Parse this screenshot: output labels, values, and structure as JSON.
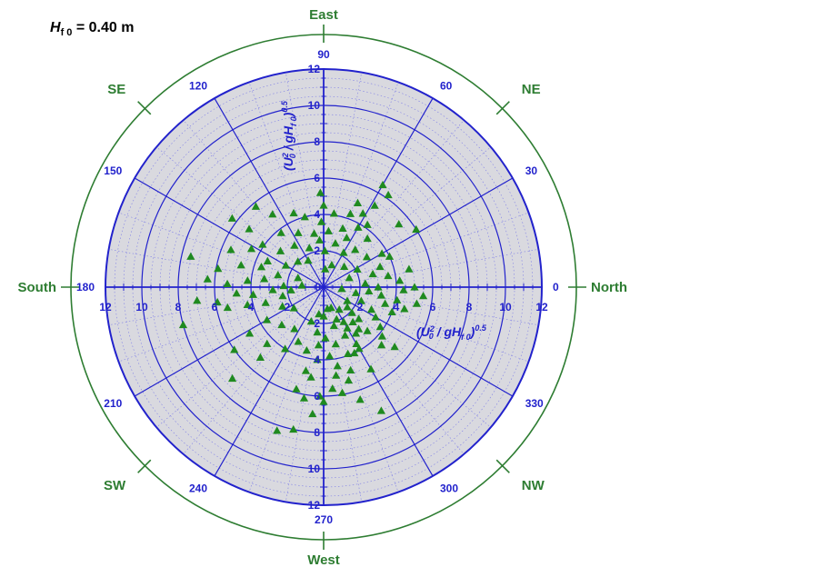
{
  "title": {
    "symbol": "H",
    "subscript": "f 0",
    "value_text": " = 0.40 m"
  },
  "colors": {
    "grid": "#2222cc",
    "fine_grid": "#7e7ee6",
    "plot_fill": "#d9d9df",
    "compass": "#2e7d32",
    "marker": "#1f8a1f"
  },
  "chart_data": {
    "type": "scatter",
    "coordinate_system": "polar",
    "zero_direction": "right",
    "angle_direction": "counterclockwise",
    "angle_ticks": [
      0,
      30,
      60,
      90,
      120,
      150,
      180,
      210,
      240,
      270,
      300,
      330
    ],
    "radial_ticks": [
      0,
      2,
      4,
      6,
      8,
      10,
      12
    ],
    "radial_max": 12,
    "radial_axis_label": {
      "prefix": "(U",
      "sup": "2",
      "sub": "0",
      "middle": " / gH",
      "sub2": "f 0",
      "suffix": ")",
      "power": "0.5"
    },
    "compass_labels": [
      {
        "angle": 0,
        "text": "North"
      },
      {
        "angle": 45,
        "text": "NE"
      },
      {
        "angle": 90,
        "text": "East"
      },
      {
        "angle": 135,
        "text": "SE"
      },
      {
        "angle": 180,
        "text": "South"
      },
      {
        "angle": 225,
        "text": "SW"
      },
      {
        "angle": 270,
        "text": "West"
      },
      {
        "angle": 315,
        "text": "NW"
      }
    ],
    "marker": "triangle",
    "grid": true,
    "points": [
      [
        1.5,
        305
      ],
      [
        1.2,
        290
      ],
      [
        2.2,
        300
      ],
      [
        1.7,
        320
      ],
      [
        2.5,
        310
      ],
      [
        3.1,
        305
      ],
      [
        3.6,
        300
      ],
      [
        4.2,
        320
      ],
      [
        3.8,
        325
      ],
      [
        4.5,
        315
      ],
      [
        5.1,
        320
      ],
      [
        2.6,
        318
      ],
      [
        3.3,
        330
      ],
      [
        4.0,
        340
      ],
      [
        4.6,
        345
      ],
      [
        5.2,
        350
      ],
      [
        1.5,
        330
      ],
      [
        2.2,
        340
      ],
      [
        2.9,
        335
      ],
      [
        3.5,
        345
      ],
      [
        1.8,
        350
      ],
      [
        2.5,
        355
      ],
      [
        3.2,
        352
      ],
      [
        4.1,
        350
      ],
      [
        4.4,
        358
      ],
      [
        5.0,
        0
      ],
      [
        5.5,
        355
      ],
      [
        3.0,
        0
      ],
      [
        2.3,
        5
      ],
      [
        1.0,
        355
      ],
      [
        4.2,
        5
      ],
      [
        3.6,
        10
      ],
      [
        2.8,
        15
      ],
      [
        1.5,
        20
      ],
      [
        3.3,
        20
      ],
      [
        4.0,
        25
      ],
      [
        3.7,
        30
      ],
      [
        4.8,
        12
      ],
      [
        2.1,
        28
      ],
      [
        2.9,
        35
      ],
      [
        5.4,
        40
      ],
      [
        6.0,
        32
      ],
      [
        1.6,
        45
      ],
      [
        2.7,
        50
      ],
      [
        3.6,
        48
      ],
      [
        4.2,
        55
      ],
      [
        3.8,
        60
      ],
      [
        4.6,
        62
      ],
      [
        5.3,
        58
      ],
      [
        6.2,
        55
      ],
      [
        2.2,
        60
      ],
      [
        3.0,
        65
      ],
      [
        1.3,
        70
      ],
      [
        2.5,
        75
      ],
      [
        3.4,
        72
      ],
      [
        4.3,
        70
      ],
      [
        5.0,
        68
      ],
      [
        6.5,
        60
      ],
      [
        1.0,
        85
      ],
      [
        2.0,
        88
      ],
      [
        3.1,
        85
      ],
      [
        4.1,
        82
      ],
      [
        2.6,
        95
      ],
      [
        3.6,
        92
      ],
      [
        4.5,
        90
      ],
      [
        5.2,
        92
      ],
      [
        3.0,
        100
      ],
      [
        4.0,
        105
      ],
      [
        2.3,
        110
      ],
      [
        3.3,
        115
      ],
      [
        4.4,
        112
      ],
      [
        1.7,
        120
      ],
      [
        2.8,
        125
      ],
      [
        3.8,
        128
      ],
      [
        4.9,
        125
      ],
      [
        5.8,
        130
      ],
      [
        2.0,
        135
      ],
      [
        3.1,
        140
      ],
      [
        4.1,
        145
      ],
      [
        5.2,
        142
      ],
      [
        6.3,
        143
      ],
      [
        2.4,
        150
      ],
      [
        3.4,
        155
      ],
      [
        4.5,
        152
      ],
      [
        5.5,
        158
      ],
      [
        1.5,
        160
      ],
      [
        2.6,
        165
      ],
      [
        3.6,
        162
      ],
      [
        4.7,
        165
      ],
      [
        5.9,
        170
      ],
      [
        7.5,
        167
      ],
      [
        1.2,
        175
      ],
      [
        2.2,
        178
      ],
      [
        3.3,
        172
      ],
      [
        4.2,
        175
      ],
      [
        5.3,
        178
      ],
      [
        6.4,
        176
      ],
      [
        1.8,
        185
      ],
      [
        2.8,
        183
      ],
      [
        3.9,
        186
      ],
      [
        4.8,
        184
      ],
      [
        5.9,
        188
      ],
      [
        7.0,
        186
      ],
      [
        8.0,
        195
      ],
      [
        2.3,
        192
      ],
      [
        3.3,
        195
      ],
      [
        4.3,
        193
      ],
      [
        5.4,
        192
      ],
      [
        2.5,
        205
      ],
      [
        3.6,
        210
      ],
      [
        4.8,
        212
      ],
      [
        6.0,
        215
      ],
      [
        7.1,
        225
      ],
      [
        2.0,
        215
      ],
      [
        3.1,
        222
      ],
      [
        4.4,
        225
      ],
      [
        5.2,
        228
      ],
      [
        2.8,
        235
      ],
      [
        4.0,
        238
      ],
      [
        3.3,
        245
      ],
      [
        2.0,
        250
      ],
      [
        3.6,
        255
      ],
      [
        4.7,
        258
      ],
      [
        5.8,
        255
      ],
      [
        6.2,
        260
      ],
      [
        8.0,
        258
      ],
      [
        8.3,
        252
      ],
      [
        1.5,
        260
      ],
      [
        2.5,
        262
      ],
      [
        3.2,
        265
      ],
      [
        4.0,
        265
      ],
      [
        5.0,
        262
      ],
      [
        6.0,
        268
      ],
      [
        7.0,
        265
      ],
      [
        1.6,
        270
      ],
      [
        2.8,
        272
      ],
      [
        3.8,
        275
      ],
      [
        4.9,
        278
      ],
      [
        5.6,
        275
      ],
      [
        6.3,
        270
      ],
      [
        1.2,
        280
      ],
      [
        2.2,
        285
      ],
      [
        3.2,
        282
      ],
      [
        4.4,
        280
      ],
      [
        5.3,
        285
      ],
      [
        5.9,
        280
      ],
      [
        7.5,
        295
      ],
      [
        1.9,
        292
      ],
      [
        2.9,
        294
      ],
      [
        3.9,
        290
      ],
      [
        4.8,
        288
      ],
      [
        3.0,
        310
      ],
      [
        5.2,
        300
      ],
      [
        4.0,
        295
      ],
      [
        6.5,
        288
      ],
      [
        3.9,
        300
      ],
      [
        2.1,
        318
      ],
      [
        2.6,
        300
      ],
      [
        3.4,
        315
      ]
    ]
  }
}
